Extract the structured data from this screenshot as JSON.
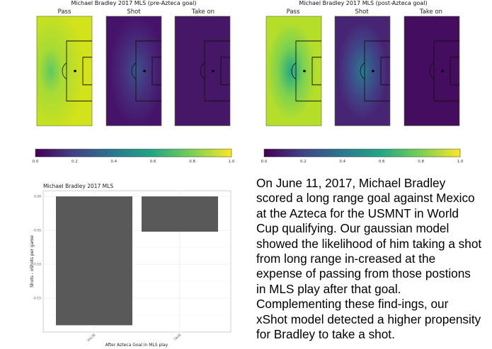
{
  "heatmaps": [
    {
      "title": "Michael Bradley 2017 MLS (pre-Azteca goal)",
      "panels": [
        "Pass",
        "Shot",
        "Take on"
      ]
    },
    {
      "title": "Michael Bradley 2017 MLS (post-Azteca goal)",
      "panels": [
        "Pass",
        "Shot",
        "Take on"
      ]
    }
  ],
  "colorbar": {
    "colormap": "viridis",
    "ticks": [
      "0.0",
      "0.2",
      "0.4",
      "0.6",
      "0.8",
      "1.0"
    ]
  },
  "chart_data": {
    "type": "bar",
    "title": "Michael Bradley 2017 MLS",
    "xlabel": "After Azteca Goal in MLS play",
    "ylabel": "Shots - xShots per game",
    "categories": [
      "FALSE",
      "TRUE"
    ],
    "values": [
      -0.19,
      -0.052
    ],
    "ylim": [
      -0.2,
      0.0
    ],
    "yticks": [
      "0.00",
      "-0.05",
      "-0.10",
      "-0.15"
    ],
    "ytick_values": [
      0,
      -0.05,
      -0.1,
      -0.15
    ],
    "grid": true,
    "bar_color": "#595959"
  },
  "paragraph": "On June 11, 2017, Michael Bradley scored a long range goal against Mexico at the Azteca for the USMNT in World Cup qualifying. Our gaussian model showed the likelihood of him taking a shot from long range in-creased at the expense of passing from those postions in MLS play after that goal. Complementing these find-ings, our xShot model detected a higher propensity for Bradley to take a shot."
}
